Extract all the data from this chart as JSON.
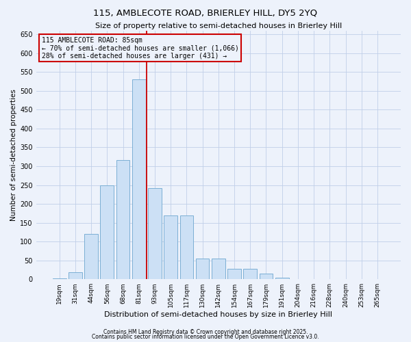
{
  "title1": "115, AMBLECOTE ROAD, BRIERLEY HILL, DY5 2YQ",
  "title2": "Size of property relative to semi-detached houses in Brierley Hill",
  "xlabel": "Distribution of semi-detached houses by size in Brierley Hill",
  "ylabel": "Number of semi-detached properties",
  "bar_labels": [
    "19sqm",
    "31sqm",
    "44sqm",
    "56sqm",
    "68sqm",
    "81sqm",
    "93sqm",
    "105sqm",
    "117sqm",
    "130sqm",
    "142sqm",
    "154sqm",
    "167sqm",
    "179sqm",
    "191sqm",
    "204sqm",
    "216sqm",
    "228sqm",
    "240sqm",
    "253sqm",
    "265sqm"
  ],
  "bar_values": [
    3,
    18,
    120,
    250,
    316,
    530,
    242,
    170,
    170,
    55,
    55,
    28,
    28,
    15,
    4,
    1,
    0,
    1,
    0,
    1,
    1
  ],
  "bar_color": "#cce0f5",
  "bar_edge_color": "#7bafd4",
  "vline_bin_index": 5,
  "annotation_title": "115 AMBLECOTE ROAD: 85sqm",
  "annotation_line1": "← 70% of semi-detached houses are smaller (1,066)",
  "annotation_line2": "28% of semi-detached houses are larger (431) →",
  "vline_color": "#cc0000",
  "annotation_box_edge_color": "#cc0000",
  "ylim": [
    0,
    660
  ],
  "yticks": [
    0,
    50,
    100,
    150,
    200,
    250,
    300,
    350,
    400,
    450,
    500,
    550,
    600,
    650
  ],
  "footnote1": "Contains HM Land Registry data © Crown copyright and database right 2025.",
  "footnote2": "Contains public sector information licensed under the Open Government Licence v3.0.",
  "background_color": "#edf2fb",
  "grid_color": "#c0cfe8",
  "title1_fontsize": 9.5,
  "title2_fontsize": 8,
  "ylabel_fontsize": 7.5,
  "xlabel_fontsize": 8,
  "tick_fontsize": 6.5,
  "annotation_fontsize": 7,
  "footnote_fontsize": 5.5
}
